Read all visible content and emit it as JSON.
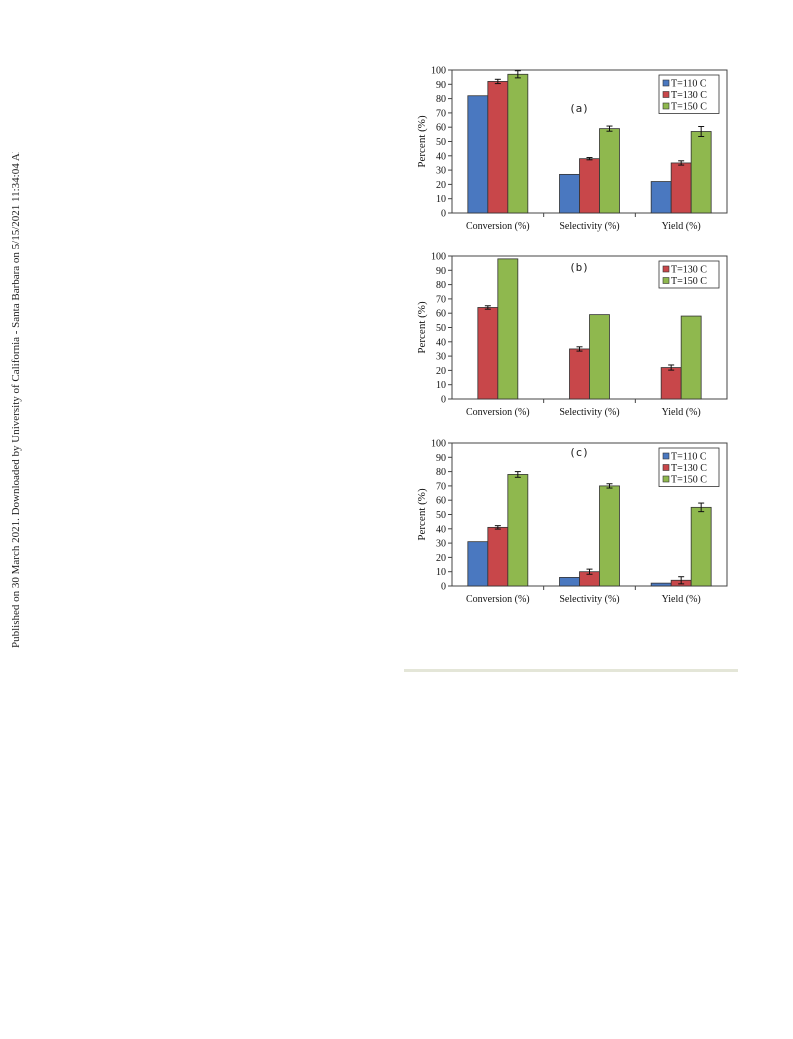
{
  "side_note": "Published on 30 March 2021. Downloaded by University of California - Santa Barbara on 5/15/2021 11:34:04 AM.",
  "colors": {
    "T=110 C": "#4a78c0",
    "T=130 C": "#c8474a",
    "T=150 C": "#8fb84e",
    "axis": "#444444",
    "rule": "#e4e6d8"
  },
  "chart_data": [
    {
      "type": "bar",
      "panel": "(a)",
      "ylabel": "Percent (%)",
      "ylim": [
        0,
        100
      ],
      "yticks": [
        0,
        10,
        20,
        30,
        40,
        50,
        60,
        70,
        80,
        90,
        100
      ],
      "categories": [
        "Conversion (%)",
        "Selectivity (%)",
        "Yield (%)"
      ],
      "legend_position": "top-right",
      "series": [
        {
          "name": "T=110 C",
          "values": [
            82,
            27,
            22
          ],
          "errors": [
            0,
            0,
            0
          ]
        },
        {
          "name": "T=130 C",
          "values": [
            92,
            38,
            35
          ],
          "errors": [
            1.5,
            0.8,
            1.5
          ]
        },
        {
          "name": "T=150 C",
          "values": [
            97,
            59,
            57
          ],
          "errors": [
            2.5,
            1.8,
            3.5
          ]
        }
      ]
    },
    {
      "type": "bar",
      "panel": "(b)",
      "ylabel": "Percent (%)",
      "ylim": [
        0,
        100
      ],
      "yticks": [
        0,
        10,
        20,
        30,
        40,
        50,
        60,
        70,
        80,
        90,
        100
      ],
      "categories": [
        "Conversion (%)",
        "Selectivity (%)",
        "Yield (%)"
      ],
      "legend_position": "top-right",
      "series": [
        {
          "name": "T=130 C",
          "values": [
            64,
            35,
            22
          ],
          "errors": [
            1.2,
            1.5,
            1.8
          ]
        },
        {
          "name": "T=150 C",
          "values": [
            98,
            59,
            58
          ],
          "errors": [
            0,
            0,
            0
          ]
        }
      ]
    },
    {
      "type": "bar",
      "panel": "(c)",
      "ylabel": "Percent (%)",
      "ylim": [
        0,
        100
      ],
      "yticks": [
        0,
        10,
        20,
        30,
        40,
        50,
        60,
        70,
        80,
        90,
        100
      ],
      "categories": [
        "Conversion (%)",
        "Selectivity (%)",
        "Yield (%)"
      ],
      "legend_position": "top-right",
      "series": [
        {
          "name": "T=110 C",
          "values": [
            31,
            6,
            2
          ],
          "errors": [
            0,
            0,
            0
          ]
        },
        {
          "name": "T=130 C",
          "values": [
            41,
            10,
            4
          ],
          "errors": [
            1.2,
            1.8,
            2.5
          ]
        },
        {
          "name": "T=150 C",
          "values": [
            78,
            70,
            55
          ],
          "errors": [
            2,
            1.5,
            3
          ]
        }
      ]
    }
  ]
}
